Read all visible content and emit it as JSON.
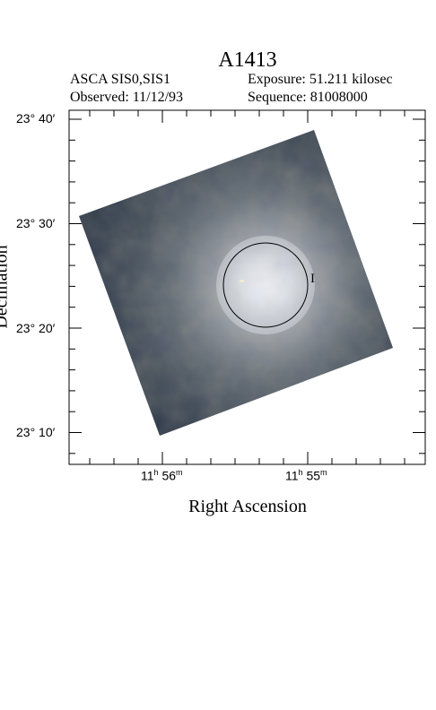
{
  "title": "A1413",
  "header": {
    "instrument": "ASCA SIS0,SIS1",
    "observed": "Observed: 11/12/93",
    "exposure": "Exposure: 51.211 kilosec",
    "sequence": "Sequence: 81008000"
  },
  "axes": {
    "x_label": "Right Ascension",
    "y_label": "Declination",
    "y_ticks": [
      "23° 40′",
      "23° 30′",
      "23° 20′",
      "23° 10′"
    ],
    "x_ticks": [
      {
        "h": "11",
        "h_unit": "h",
        "m": "56",
        "m_unit": "m"
      },
      {
        "h": "11",
        "h_unit": "h",
        "m": "55",
        "m_unit": "m"
      }
    ]
  },
  "marker_label": "I",
  "colors": {
    "frame": "#000000",
    "field_dark": "#2f3b4a",
    "field_warm": "#5a5a3a",
    "core": "#f4f6fb"
  }
}
